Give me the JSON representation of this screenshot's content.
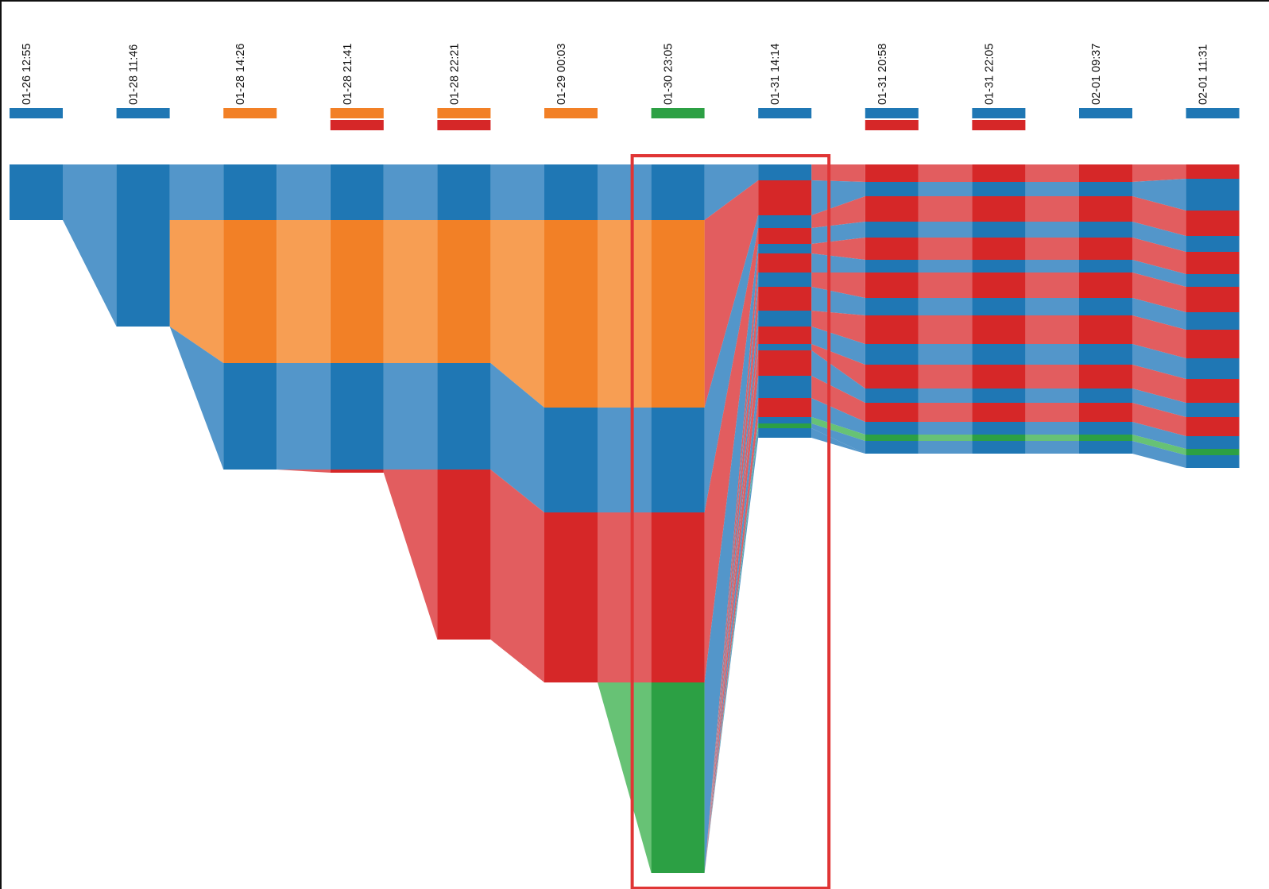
{
  "colors": {
    "blue": "#1f77b4",
    "orange": "#f28026",
    "red": "#d62728",
    "green": "#2ca044",
    "highlight": "#e03535"
  },
  "chart_data": {
    "type": "sankey-timeline",
    "time_labels": [
      "01-26 12:55",
      "01-28 11:46",
      "01-28 14:26",
      "01-28 21:41",
      "01-28 22:21",
      "01-29 00:03",
      "01-30 23:05",
      "01-31 14:14",
      "01-31 20:58",
      "01-31 22:05",
      "02-01 09:37",
      "02-01 11:31"
    ],
    "legend_markers": [
      [
        "blue"
      ],
      [
        "blue"
      ],
      [
        "orange"
      ],
      [
        "orange",
        "red"
      ],
      [
        "orange",
        "red"
      ],
      [
        "orange"
      ],
      [
        "green"
      ],
      [
        "blue"
      ],
      [
        "blue",
        "red"
      ],
      [
        "blue",
        "red"
      ],
      [
        "blue"
      ],
      [
        "blue"
      ]
    ],
    "stacks": [
      [
        [
          "blue",
          35
        ]
      ],
      [
        [
          "blue",
          35
        ],
        [
          "blue",
          67
        ]
      ],
      [
        [
          "blue",
          35
        ],
        [
          "orange",
          90
        ],
        [
          "blue",
          67
        ]
      ],
      [
        [
          "blue",
          35
        ],
        [
          "orange",
          90
        ],
        [
          "blue",
          67
        ],
        [
          "red",
          2
        ]
      ],
      [
        [
          "blue",
          35
        ],
        [
          "orange",
          90
        ],
        [
          "blue",
          67
        ],
        [
          "red",
          107
        ]
      ],
      [
        [
          "blue",
          35
        ],
        [
          "orange",
          118
        ],
        [
          "blue",
          66
        ],
        [
          "red",
          107
        ]
      ],
      [
        [
          "blue",
          35
        ],
        [
          "orange",
          118
        ],
        [
          "blue",
          66
        ],
        [
          "red",
          107
        ],
        [
          "green",
          120
        ]
      ],
      [
        [
          "blue",
          10
        ],
        [
          "red",
          22
        ],
        [
          "blue",
          8
        ],
        [
          "red",
          10
        ],
        [
          "blue",
          6
        ],
        [
          "red",
          12
        ],
        [
          "blue",
          9
        ],
        [
          "red",
          15
        ],
        [
          "blue",
          10
        ],
        [
          "red",
          11
        ],
        [
          "blue",
          4
        ],
        [
          "red",
          16
        ],
        [
          "blue",
          14
        ],
        [
          "red",
          12
        ],
        [
          "blue",
          4
        ],
        [
          "green",
          3
        ],
        [
          "blue",
          6
        ]
      ],
      [
        [
          "red",
          11
        ],
        [
          "blue",
          9
        ],
        [
          "red",
          16
        ],
        [
          "blue",
          10
        ],
        [
          "red",
          14
        ],
        [
          "blue",
          8
        ],
        [
          "red",
          16
        ],
        [
          "blue",
          11
        ],
        [
          "red",
          18
        ],
        [
          "blue",
          13
        ],
        [
          "red",
          15
        ],
        [
          "blue",
          9
        ],
        [
          "red",
          12
        ],
        [
          "blue",
          8
        ],
        [
          "green",
          4
        ],
        [
          "blue",
          8
        ]
      ],
      [
        [
          "red",
          11
        ],
        [
          "blue",
          9
        ],
        [
          "red",
          16
        ],
        [
          "blue",
          10
        ],
        [
          "red",
          14
        ],
        [
          "blue",
          8
        ],
        [
          "red",
          16
        ],
        [
          "blue",
          11
        ],
        [
          "red",
          18
        ],
        [
          "blue",
          13
        ],
        [
          "red",
          15
        ],
        [
          "blue",
          9
        ],
        [
          "red",
          12
        ],
        [
          "blue",
          8
        ],
        [
          "green",
          4
        ],
        [
          "blue",
          8
        ]
      ],
      [
        [
          "red",
          11
        ],
        [
          "blue",
          9
        ],
        [
          "red",
          16
        ],
        [
          "blue",
          10
        ],
        [
          "red",
          14
        ],
        [
          "blue",
          8
        ],
        [
          "red",
          16
        ],
        [
          "blue",
          11
        ],
        [
          "red",
          18
        ],
        [
          "blue",
          13
        ],
        [
          "red",
          15
        ],
        [
          "blue",
          9
        ],
        [
          "red",
          12
        ],
        [
          "blue",
          8
        ],
        [
          "green",
          4
        ],
        [
          "blue",
          8
        ]
      ],
      [
        [
          "red",
          9
        ],
        [
          "blue",
          20
        ],
        [
          "red",
          16
        ],
        [
          "blue",
          10
        ],
        [
          "red",
          14
        ],
        [
          "blue",
          8
        ],
        [
          "red",
          16
        ],
        [
          "blue",
          11
        ],
        [
          "red",
          18
        ],
        [
          "blue",
          13
        ],
        [
          "red",
          15
        ],
        [
          "blue",
          9
        ],
        [
          "red",
          12
        ],
        [
          "blue",
          8
        ],
        [
          "green",
          4
        ],
        [
          "blue",
          8
        ]
      ]
    ],
    "highlight_columns": [
      "01-30 23:05",
      "01-31 14:14"
    ],
    "title": "",
    "xlabel": "",
    "ylabel": ""
  }
}
